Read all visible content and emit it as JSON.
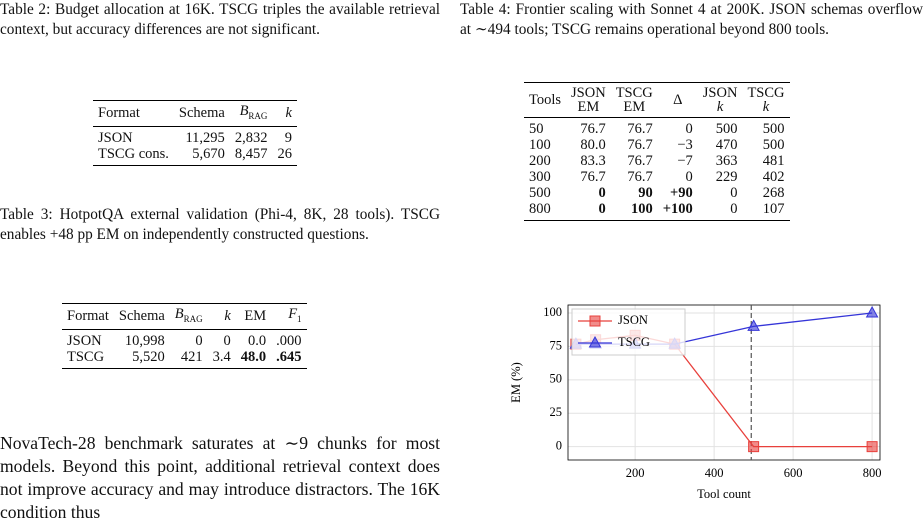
{
  "table2": {
    "caption": "Table 2: Budget allocation at 16K. TSCG triples the available retrieval context, but accuracy differences are not significant.",
    "headers": [
      "Format",
      "Schema",
      {
        "main": "B",
        "sub": "RAG"
      },
      "k"
    ],
    "rows": [
      {
        "cells": [
          "JSON",
          "11,295",
          "2,832",
          "9"
        ]
      },
      {
        "cells": [
          "TSCG cons.",
          "5,670",
          "8,457",
          "26"
        ]
      }
    ]
  },
  "table3": {
    "caption": "Table 3: HotpotQA external validation (Phi-4, 8K, 28 tools). TSCG enables +48 pp EM on independently constructed questions.",
    "headers": [
      "Format",
      "Schema",
      {
        "main": "B",
        "sub": "RAG"
      },
      "k",
      "EM",
      {
        "main": "F",
        "sub": "1"
      }
    ],
    "rows": [
      {
        "cells": [
          "JSON",
          "10,998",
          "0",
          "0",
          "0.0",
          ".000"
        ]
      },
      {
        "cells": [
          "TSCG",
          "5,520",
          "421",
          "3.4",
          "48.0",
          ".645"
        ],
        "bold": [
          4,
          5
        ]
      }
    ]
  },
  "paragraph": "NovaTech-28 benchmark saturates at ∼9 chunks for most models. Beyond this point, additional retrieval context does not improve accuracy and may introduce distractors. The 16K condition thus",
  "table4": {
    "caption": "Table 4: Frontier scaling with Sonnet 4 at 200K. JSON schemas overflow at ∼494 tools; TSCG remains operational beyond 800 tools.",
    "headers": [
      [
        "Tools"
      ],
      [
        "JSON",
        "EM"
      ],
      [
        "TSCG",
        "EM"
      ],
      [
        "Δ"
      ],
      [
        "JSON",
        "k"
      ],
      [
        "TSCG",
        "k"
      ]
    ],
    "rows": [
      {
        "cells": [
          "50",
          "76.7",
          "76.7",
          "0",
          "500",
          "500"
        ]
      },
      {
        "cells": [
          "100",
          "80.0",
          "76.7",
          "−3",
          "470",
          "500"
        ]
      },
      {
        "cells": [
          "200",
          "83.3",
          "76.7",
          "−7",
          "363",
          "481"
        ]
      },
      {
        "cells": [
          "300",
          "76.7",
          "76.7",
          "0",
          "229",
          "402"
        ]
      },
      {
        "cells": [
          "500",
          "0",
          "90",
          "+90",
          "0",
          "268"
        ],
        "bold": [
          1,
          2,
          3
        ]
      },
      {
        "cells": [
          "800",
          "0",
          "100",
          "+100",
          "0",
          "107"
        ],
        "bold": [
          1,
          2,
          3
        ]
      }
    ]
  },
  "chart_data": {
    "type": "line",
    "x_label": "Tool count",
    "y_label": "EM (%)",
    "x": [
      50,
      100,
      200,
      300,
      500,
      800
    ],
    "series": [
      {
        "name": "JSON",
        "color": "#e8403c",
        "marker": "square",
        "values": [
          76.7,
          80.0,
          83.3,
          76.7,
          0,
          0
        ]
      },
      {
        "name": "TSCG",
        "color": "#3535d8",
        "marker": "triangle",
        "values": [
          76.7,
          76.7,
          76.7,
          76.7,
          90,
          100
        ]
      }
    ],
    "xlim": [
      30,
      820
    ],
    "ylim": [
      -10,
      106
    ],
    "xticks": [
      200,
      400,
      600,
      800
    ],
    "yticks": [
      0,
      25,
      50,
      75,
      100
    ],
    "grid": true,
    "legend": "upper-left",
    "vline": 494
  }
}
